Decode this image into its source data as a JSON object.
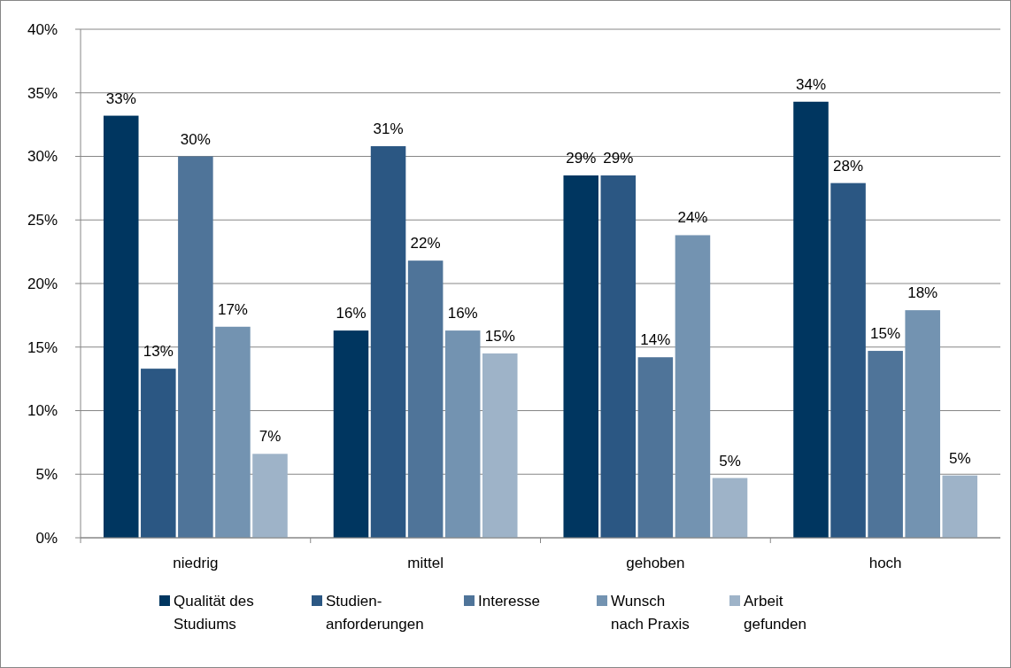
{
  "chart_data": {
    "type": "bar",
    "categories": [
      "niedrig",
      "mittel",
      "gehoben",
      "hoch"
    ],
    "series": [
      {
        "name": "Qualität des\nStudiums",
        "color": "#003660",
        "values": [
          33.2,
          16.3,
          28.5,
          34.3
        ],
        "value_labels": [
          "33%",
          "16%",
          "29%",
          "34%"
        ]
      },
      {
        "name": "Studien-\nanforderungen",
        "color": "#2b5783",
        "values": [
          13.3,
          30.8,
          28.5,
          27.9
        ],
        "value_labels": [
          "13%",
          "31%",
          "29%",
          "28%"
        ]
      },
      {
        "name": "Interesse",
        "color": "#4f7499",
        "values": [
          30.0,
          21.8,
          14.2,
          14.7
        ],
        "value_labels": [
          "30%",
          "22%",
          "14%",
          "15%"
        ]
      },
      {
        "name": "Wunsch\nnach Praxis",
        "color": "#7393b1",
        "values": [
          16.6,
          16.3,
          23.8,
          17.9
        ],
        "value_labels": [
          "17%",
          "16%",
          "24%",
          "18%"
        ]
      },
      {
        "name": "Arbeit\ngefunden",
        "color": "#9eb3c8",
        "values": [
          6.6,
          14.5,
          4.7,
          4.9
        ],
        "value_labels": [
          "7%",
          "15%",
          "5%",
          "5%"
        ]
      }
    ],
    "ylim": [
      0,
      40
    ],
    "yticks": [
      {
        "value": 0,
        "label": "0%"
      },
      {
        "value": 5,
        "label": "5%"
      },
      {
        "value": 10,
        "label": "10%"
      },
      {
        "value": 15,
        "label": "15%"
      },
      {
        "value": 20,
        "label": "20%"
      },
      {
        "value": 25,
        "label": "25%"
      },
      {
        "value": 30,
        "label": "30%"
      },
      {
        "value": 35,
        "label": "35%"
      },
      {
        "value": 40,
        "label": "40%"
      }
    ],
    "grid": "y",
    "legend": "bottom"
  }
}
